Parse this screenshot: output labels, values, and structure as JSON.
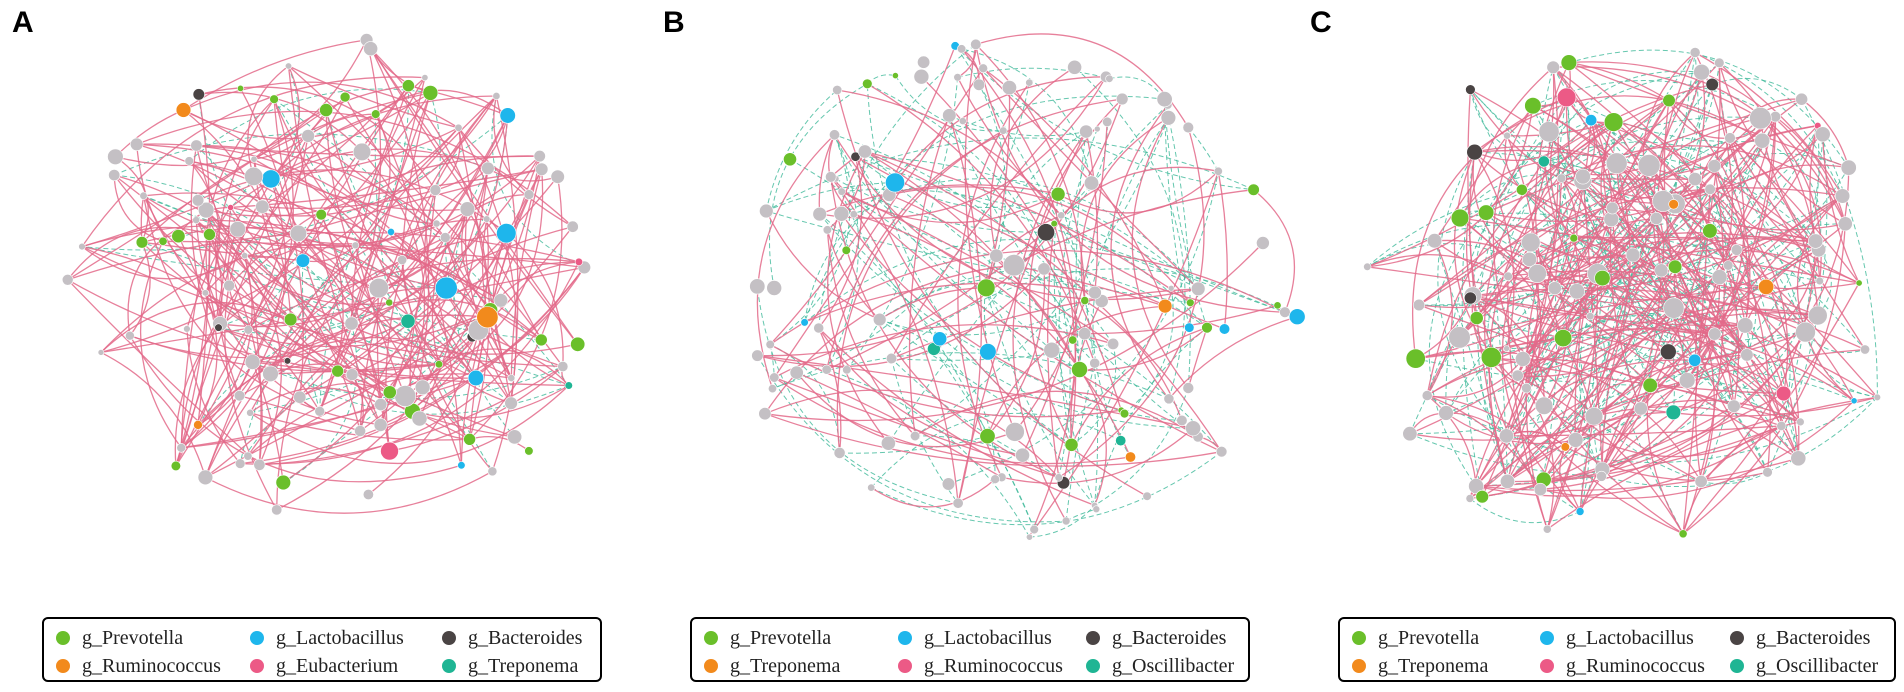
{
  "panels": [
    {
      "letter": "A",
      "legend": [
        {
          "label": "g_Prevotella",
          "color": "#6abf2a"
        },
        {
          "label": "g_Lactobacillus",
          "color": "#1eb6ec"
        },
        {
          "label": "g_Bacteroides",
          "color": "#4a4444"
        },
        {
          "label": "g_Ruminococcus",
          "color": "#f28a1c"
        },
        {
          "label": "g_Eubacterium",
          "color": "#ec5a86"
        },
        {
          "label": "g_Treponema",
          "color": "#1fb594"
        }
      ]
    },
    {
      "letter": "B",
      "legend": [
        {
          "label": "g_Prevotella",
          "color": "#6abf2a"
        },
        {
          "label": "g_Lactobacillus",
          "color": "#1eb6ec"
        },
        {
          "label": "g_Bacteroides",
          "color": "#4a4444"
        },
        {
          "label": "g_Treponema",
          "color": "#f28a1c"
        },
        {
          "label": "g_Ruminococcus",
          "color": "#ec5a86"
        },
        {
          "label": "g_Oscillibacter",
          "color": "#1fb594"
        }
      ]
    },
    {
      "letter": "C",
      "legend": [
        {
          "label": "g_Prevotella",
          "color": "#6abf2a"
        },
        {
          "label": "g_Lactobacillus",
          "color": "#1eb6ec"
        },
        {
          "label": "g_Bacteroides",
          "color": "#4a4444"
        },
        {
          "label": "g_Treponema",
          "color": "#f28a1c"
        },
        {
          "label": "g_Ruminococcus",
          "color": "#ec5a86"
        },
        {
          "label": "g_Oscillibacter",
          "color": "#1fb594"
        }
      ]
    }
  ],
  "edge_colors": {
    "positive": "#e36a8a",
    "negative": "#3fb99a"
  },
  "other_node_color": "#c4c0c4"
}
